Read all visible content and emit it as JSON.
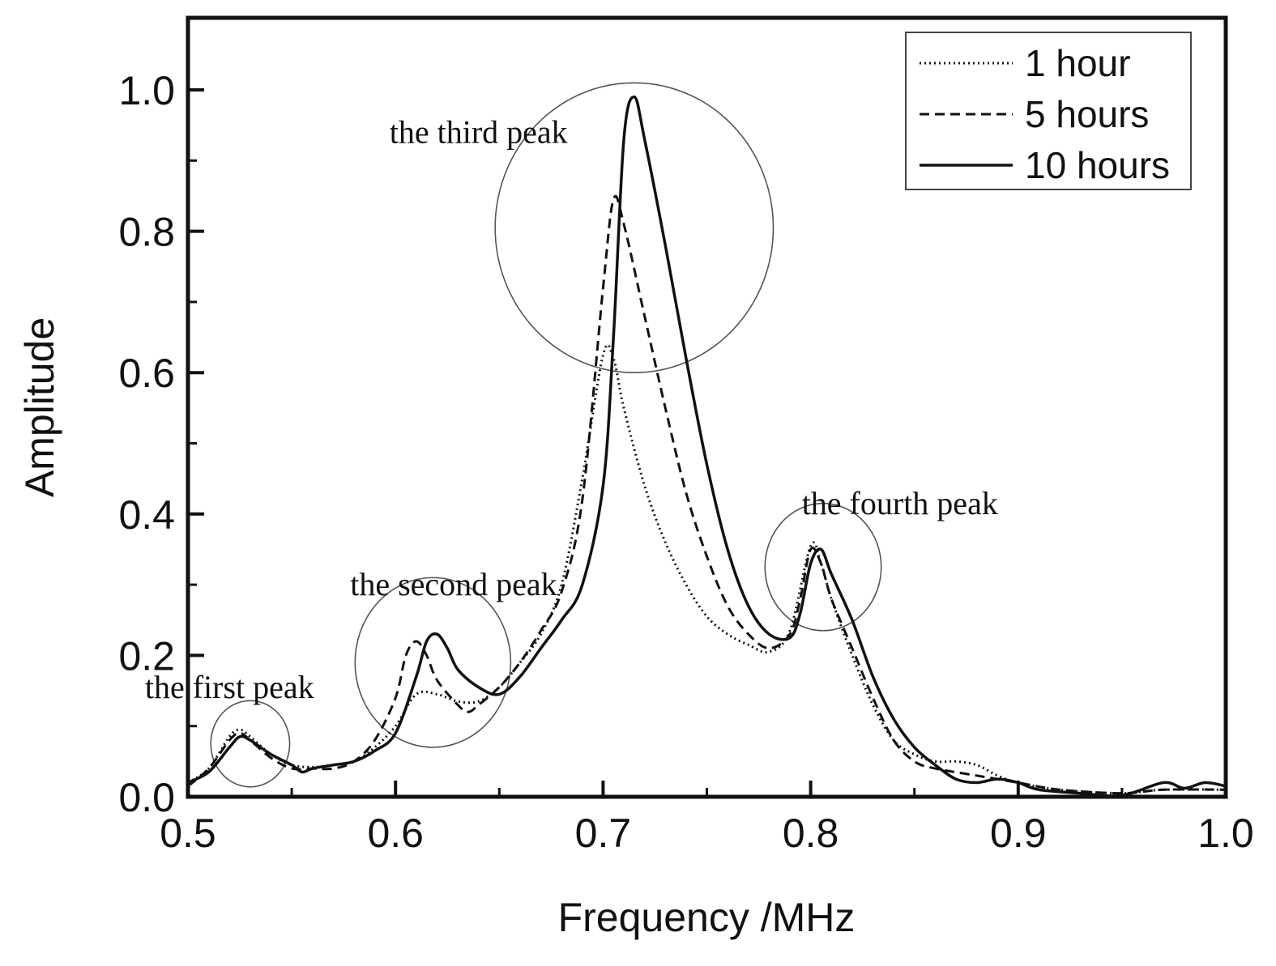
{
  "chart_data": {
    "type": "line",
    "title": "",
    "xlabel": "Frequency /MHz",
    "ylabel": "Amplitude",
    "xlim": [
      0.5,
      1.0
    ],
    "ylim": [
      0.0,
      1.1
    ],
    "x_ticks": [
      0.5,
      0.6,
      0.7,
      0.8,
      0.9,
      1.0
    ],
    "x_tick_labels": [
      "0.5",
      "0.6",
      "0.7",
      "0.8",
      "0.9",
      "1.0"
    ],
    "y_ticks": [
      0.0,
      0.2,
      0.4,
      0.6,
      0.8,
      1.0
    ],
    "y_tick_labels": [
      "0.0",
      "0.2",
      "0.4",
      "0.6",
      "0.8",
      "1.0"
    ],
    "grid": false,
    "legend_position": "top-right",
    "series": [
      {
        "name": "1 hour",
        "style": "dotted",
        "points": [
          [
            0.5,
            0.02
          ],
          [
            0.51,
            0.04
          ],
          [
            0.52,
            0.085
          ],
          [
            0.525,
            0.095
          ],
          [
            0.53,
            0.085
          ],
          [
            0.54,
            0.06
          ],
          [
            0.55,
            0.045
          ],
          [
            0.56,
            0.042
          ],
          [
            0.57,
            0.045
          ],
          [
            0.58,
            0.05
          ],
          [
            0.59,
            0.07
          ],
          [
            0.6,
            0.1
          ],
          [
            0.61,
            0.145
          ],
          [
            0.62,
            0.145
          ],
          [
            0.63,
            0.135
          ],
          [
            0.64,
            0.135
          ],
          [
            0.65,
            0.155
          ],
          [
            0.66,
            0.19
          ],
          [
            0.67,
            0.23
          ],
          [
            0.68,
            0.3
          ],
          [
            0.69,
            0.45
          ],
          [
            0.7,
            0.625
          ],
          [
            0.705,
            0.62
          ],
          [
            0.71,
            0.55
          ],
          [
            0.72,
            0.44
          ],
          [
            0.73,
            0.36
          ],
          [
            0.74,
            0.3
          ],
          [
            0.75,
            0.255
          ],
          [
            0.76,
            0.23
          ],
          [
            0.77,
            0.215
          ],
          [
            0.78,
            0.205
          ],
          [
            0.79,
            0.235
          ],
          [
            0.8,
            0.355
          ],
          [
            0.805,
            0.33
          ],
          [
            0.81,
            0.28
          ],
          [
            0.82,
            0.2
          ],
          [
            0.83,
            0.13
          ],
          [
            0.84,
            0.08
          ],
          [
            0.85,
            0.06
          ],
          [
            0.86,
            0.05
          ],
          [
            0.87,
            0.05
          ],
          [
            0.88,
            0.045
          ],
          [
            0.89,
            0.03
          ],
          [
            0.9,
            0.02
          ],
          [
            0.92,
            0.01
          ],
          [
            0.95,
            0.005
          ],
          [
            0.97,
            0.01
          ],
          [
            1.0,
            0.01
          ]
        ]
      },
      {
        "name": "5 hours",
        "style": "dashed",
        "points": [
          [
            0.5,
            0.015
          ],
          [
            0.51,
            0.04
          ],
          [
            0.52,
            0.08
          ],
          [
            0.525,
            0.09
          ],
          [
            0.53,
            0.08
          ],
          [
            0.54,
            0.055
          ],
          [
            0.55,
            0.04
          ],
          [
            0.56,
            0.04
          ],
          [
            0.57,
            0.04
          ],
          [
            0.58,
            0.05
          ],
          [
            0.59,
            0.08
          ],
          [
            0.6,
            0.14
          ],
          [
            0.605,
            0.2
          ],
          [
            0.61,
            0.22
          ],
          [
            0.615,
            0.2
          ],
          [
            0.62,
            0.165
          ],
          [
            0.63,
            0.13
          ],
          [
            0.635,
            0.12
          ],
          [
            0.64,
            0.13
          ],
          [
            0.65,
            0.155
          ],
          [
            0.66,
            0.19
          ],
          [
            0.67,
            0.235
          ],
          [
            0.68,
            0.29
          ],
          [
            0.69,
            0.42
          ],
          [
            0.7,
            0.72
          ],
          [
            0.705,
            0.845
          ],
          [
            0.71,
            0.81
          ],
          [
            0.72,
            0.68
          ],
          [
            0.73,
            0.55
          ],
          [
            0.74,
            0.43
          ],
          [
            0.75,
            0.34
          ],
          [
            0.76,
            0.27
          ],
          [
            0.77,
            0.23
          ],
          [
            0.78,
            0.21
          ],
          [
            0.79,
            0.23
          ],
          [
            0.795,
            0.28
          ],
          [
            0.8,
            0.35
          ],
          [
            0.805,
            0.33
          ],
          [
            0.81,
            0.28
          ],
          [
            0.82,
            0.21
          ],
          [
            0.83,
            0.14
          ],
          [
            0.84,
            0.08
          ],
          [
            0.85,
            0.05
          ],
          [
            0.86,
            0.04
          ],
          [
            0.88,
            0.03
          ],
          [
            0.9,
            0.02
          ],
          [
            0.92,
            0.01
          ],
          [
            0.95,
            0.005
          ],
          [
            0.97,
            0.01
          ],
          [
            1.0,
            0.01
          ]
        ]
      },
      {
        "name": "10 hours",
        "style": "solid",
        "points": [
          [
            0.5,
            0.02
          ],
          [
            0.51,
            0.035
          ],
          [
            0.52,
            0.07
          ],
          [
            0.525,
            0.085
          ],
          [
            0.53,
            0.08
          ],
          [
            0.54,
            0.06
          ],
          [
            0.55,
            0.045
          ],
          [
            0.555,
            0.035
          ],
          [
            0.56,
            0.04
          ],
          [
            0.57,
            0.045
          ],
          [
            0.58,
            0.05
          ],
          [
            0.59,
            0.065
          ],
          [
            0.6,
            0.09
          ],
          [
            0.61,
            0.17
          ],
          [
            0.615,
            0.22
          ],
          [
            0.62,
            0.23
          ],
          [
            0.625,
            0.21
          ],
          [
            0.63,
            0.18
          ],
          [
            0.64,
            0.155
          ],
          [
            0.65,
            0.145
          ],
          [
            0.66,
            0.17
          ],
          [
            0.67,
            0.21
          ],
          [
            0.68,
            0.25
          ],
          [
            0.69,
            0.3
          ],
          [
            0.7,
            0.44
          ],
          [
            0.705,
            0.65
          ],
          [
            0.71,
            0.93
          ],
          [
            0.715,
            0.99
          ],
          [
            0.72,
            0.93
          ],
          [
            0.73,
            0.78
          ],
          [
            0.74,
            0.62
          ],
          [
            0.75,
            0.47
          ],
          [
            0.76,
            0.35
          ],
          [
            0.77,
            0.27
          ],
          [
            0.78,
            0.23
          ],
          [
            0.79,
            0.225
          ],
          [
            0.795,
            0.26
          ],
          [
            0.8,
            0.33
          ],
          [
            0.805,
            0.35
          ],
          [
            0.81,
            0.315
          ],
          [
            0.82,
            0.25
          ],
          [
            0.83,
            0.17
          ],
          [
            0.84,
            0.11
          ],
          [
            0.85,
            0.07
          ],
          [
            0.86,
            0.045
          ],
          [
            0.87,
            0.025
          ],
          [
            0.88,
            0.02
          ],
          [
            0.89,
            0.025
          ],
          [
            0.9,
            0.02
          ],
          [
            0.91,
            0.01
          ],
          [
            0.93,
            0.005
          ],
          [
            0.95,
            0.002
          ],
          [
            0.97,
            0.02
          ],
          [
            0.98,
            0.012
          ],
          [
            0.99,
            0.02
          ],
          [
            1.0,
            0.015
          ]
        ]
      }
    ],
    "annotations": [
      {
        "text": "the first peak",
        "x": 0.52,
        "y": 0.14
      },
      {
        "text": "the second peak",
        "x": 0.628,
        "y": 0.285
      },
      {
        "text": "the third peak",
        "x": 0.64,
        "y": 0.925
      },
      {
        "text": "the fourth peak",
        "x": 0.843,
        "y": 0.4
      }
    ],
    "highlight_circles": [
      {
        "label": "first",
        "cx": 0.53,
        "cy": 0.075,
        "rx": 0.019,
        "ry": 0.061
      },
      {
        "label": "second",
        "cx": 0.618,
        "cy": 0.19,
        "rx": 0.0375,
        "ry": 0.12
      },
      {
        "label": "third",
        "cx": 0.715,
        "cy": 0.805,
        "rx": 0.067,
        "ry": 0.205
      },
      {
        "label": "fourth",
        "cx": 0.806,
        "cy": 0.325,
        "rx": 0.028,
        "ry": 0.09
      }
    ]
  }
}
